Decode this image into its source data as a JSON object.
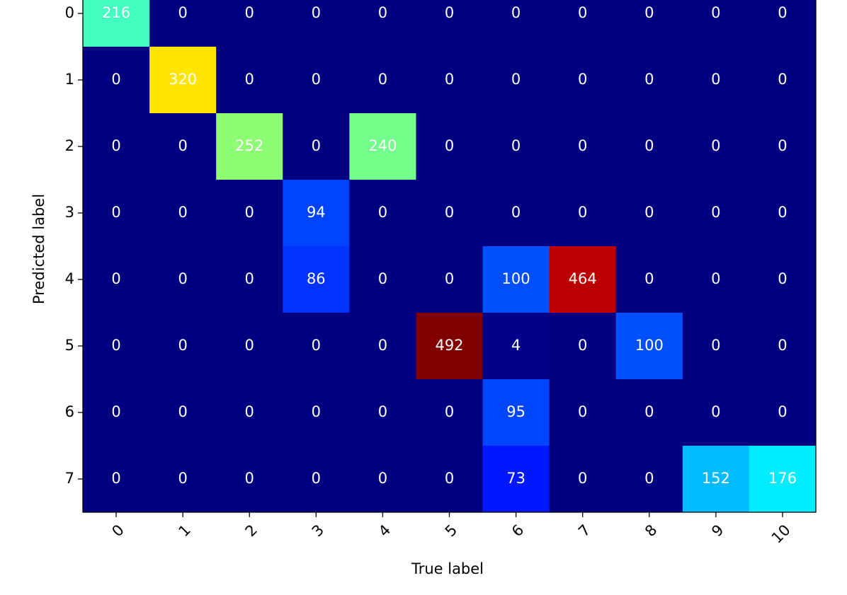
{
  "chart_data": {
    "type": "heatmap",
    "x_label": "True label",
    "y_label": "Predicted label",
    "x_categories": [
      "0",
      "1",
      "2",
      "3",
      "4",
      "5",
      "6",
      "7",
      "8",
      "9",
      "10"
    ],
    "y_categories": [
      "0",
      "1",
      "2",
      "3",
      "4",
      "5",
      "6",
      "7"
    ],
    "colormap": "jet",
    "values": [
      [
        216,
        0,
        0,
        0,
        0,
        0,
        0,
        0,
        0,
        0,
        0
      ],
      [
        0,
        320,
        0,
        0,
        0,
        0,
        0,
        0,
        0,
        0,
        0
      ],
      [
        0,
        0,
        252,
        0,
        240,
        0,
        0,
        0,
        0,
        0,
        0
      ],
      [
        0,
        0,
        0,
        94,
        0,
        0,
        0,
        0,
        0,
        0,
        0
      ],
      [
        0,
        0,
        0,
        86,
        0,
        0,
        100,
        464,
        0,
        0,
        0
      ],
      [
        0,
        0,
        0,
        0,
        0,
        492,
        4,
        0,
        100,
        0,
        0
      ],
      [
        0,
        0,
        0,
        0,
        0,
        0,
        95,
        0,
        0,
        0,
        0
      ],
      [
        0,
        0,
        0,
        0,
        0,
        0,
        73,
        0,
        0,
        152,
        176
      ]
    ]
  }
}
